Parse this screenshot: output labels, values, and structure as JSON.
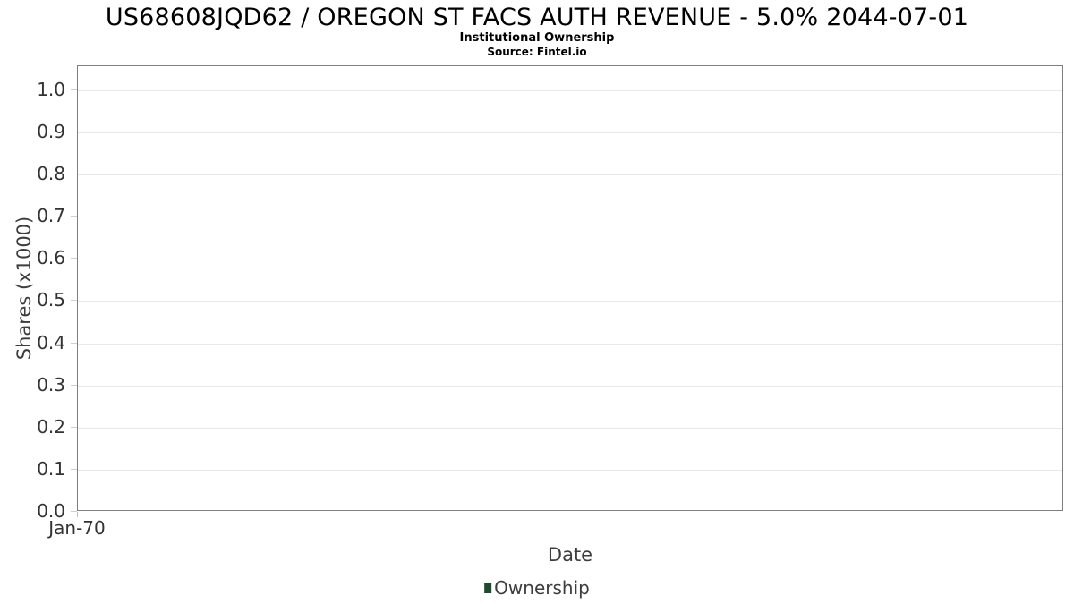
{
  "chart": {
    "title": "US68608JQD62 / OREGON ST FACS AUTH REVENUE - 5.0% 2044-07-01",
    "subtitle": "Institutional Ownership",
    "source": "Source: Fintel.io",
    "xlabel": "Date",
    "ylabel": "Shares (x1000)",
    "legend": [
      {
        "label": "Ownership",
        "color": "#1e4b2b"
      }
    ]
  },
  "chart_data": {
    "type": "bar",
    "title": "US68608JQD62 / OREGON ST FACS AUTH REVENUE - 5.0% 2044-07-01",
    "subtitle": "Institutional Ownership",
    "source": "Source: Fintel.io",
    "xlabel": "Date",
    "ylabel": "Shares (x1000)",
    "x_tick_labels": [
      "Jan-70"
    ],
    "y_tick_labels": [
      "0.0",
      "0.1",
      "0.2",
      "0.3",
      "0.4",
      "0.5",
      "0.6",
      "0.7",
      "0.8",
      "0.9",
      "1.0"
    ],
    "ylim": [
      0,
      1.057
    ],
    "grid": "horizontal",
    "legend_position": "bottom-center",
    "series": [
      {
        "name": "Ownership",
        "color": "#1e4b2b",
        "values": []
      }
    ],
    "colors": {
      "plot_border": "#7f7f7f",
      "gridline": "#e8e8e8",
      "tick_text": "#333333",
      "axis_label_text": "#3d3d3d",
      "title_text": "#000000",
      "series_ownership": "#1e4b2b"
    }
  }
}
